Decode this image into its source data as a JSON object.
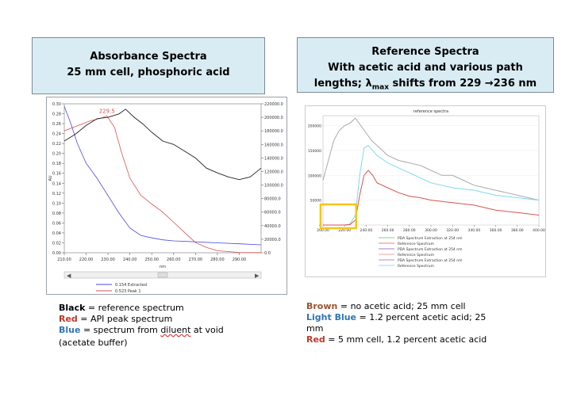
{
  "left_title": {
    "line1": "Absorbance Spectra",
    "line2": "25 mm cell, phosphoric acid"
  },
  "right_title": {
    "line1": "Reference Spectra",
    "line2": "With acetic acid and various path",
    "line3_pre": "lengths; λ",
    "line3_sub": "max",
    "line3_post": " shifts from 229 →236 nm"
  },
  "colors": {
    "black": "#222222",
    "red": "#d9534f",
    "blue": "#4a4adf",
    "brown": "#a9a9a9",
    "light_blue": "#7fd8ee",
    "highlight": "#f5c518"
  },
  "chart_data": [
    {
      "type": "line",
      "title": "",
      "xlabel": "nm",
      "ylabel": "AU",
      "xlim": [
        210,
        300
      ],
      "ylim": [
        0.0,
        0.3
      ],
      "y2lim": [
        0,
        220000
      ],
      "x_ticks": [
        "210.00",
        "220.00",
        "230.00",
        "240.00",
        "250.00",
        "260.00",
        "270.00",
        "280.00",
        "290.00"
      ],
      "y_ticks": [
        "0.00",
        "0.02",
        "0.04",
        "0.06",
        "0.08",
        "0.10",
        "0.12",
        "0.14",
        "0.16",
        "0.18",
        "0.20",
        "0.22",
        "0.24",
        "0.26",
        "0.28",
        "0.30"
      ],
      "y2_ticks": [
        "0.0",
        "20000.0",
        "40000.0",
        "60000.0",
        "80000.0",
        "100000.0",
        "120000.0",
        "140000.0",
        "160000.0",
        "180000.0",
        "200000.0",
        "220000.0"
      ],
      "peak_label": "229.5",
      "legend": [
        "0.154 Extracted",
        "0.523 Peak 1"
      ],
      "series": [
        {
          "name": "0.154 Extracted",
          "color": "blue",
          "axis": "y",
          "x": [
            210,
            213,
            216,
            220,
            225,
            230,
            235,
            240,
            245,
            250,
            255,
            260,
            270,
            280,
            290,
            300
          ],
          "y": [
            0.295,
            0.26,
            0.22,
            0.18,
            0.15,
            0.115,
            0.08,
            0.05,
            0.035,
            0.03,
            0.026,
            0.024,
            0.022,
            0.02,
            0.018,
            0.016
          ]
        },
        {
          "name": "0.523 Peak 1",
          "color": "red",
          "axis": "y2",
          "x": [
            210,
            214,
            218,
            222,
            226,
            229.5,
            233,
            236,
            240,
            245,
            250,
            255,
            260,
            265,
            270,
            275,
            280,
            290,
            300
          ],
          "y": [
            180000,
            185000,
            190000,
            195000,
            198000,
            202000,
            185000,
            150000,
            110000,
            85000,
            72000,
            60000,
            45000,
            30000,
            15000,
            8000,
            3000,
            500,
            200
          ]
        },
        {
          "name": "reference",
          "color": "black",
          "axis": "y2",
          "x": [
            210,
            215,
            220,
            225,
            230,
            235,
            238,
            242,
            246,
            250,
            255,
            260,
            265,
            270,
            275,
            280,
            285,
            290,
            295,
            300
          ],
          "y": [
            165000,
            175000,
            188000,
            198000,
            200000,
            205000,
            212000,
            200000,
            190000,
            178000,
            165000,
            160000,
            150000,
            140000,
            125000,
            118000,
            112000,
            108000,
            112000,
            125000
          ]
        }
      ]
    },
    {
      "type": "line",
      "title": "reference spectra",
      "xlim": [
        200,
        400
      ],
      "ylim": [
        0,
        220000
      ],
      "x_ticks": [
        "200.00",
        "220.00",
        "240.00",
        "260.00",
        "280.00",
        "300.00",
        "320.00",
        "340.00",
        "360.00",
        "380.00",
        "400.00"
      ],
      "y_ticks": [
        "0",
        "50000",
        "100000",
        "150000",
        "200000"
      ],
      "legend": [
        "PDA Spectrum Extraction at 254 nm",
        "Reference Spectrum",
        "PDA Spectrum Extraction at 254 nm",
        "Reference Spectrum",
        "PDA Spectrum Extraction at 254 nm",
        "Reference Spectrum"
      ],
      "legend_colors": [
        "#88cc88",
        "#f08080",
        "#9a7fd1",
        "#f0a0a0",
        "#b98ad6",
        "#8ee0f2"
      ],
      "series": [
        {
          "name": "Brown",
          "color": "brown",
          "x": [
            200,
            205,
            210,
            215,
            220,
            225,
            230,
            235,
            240,
            245,
            250,
            255,
            260,
            265,
            270,
            280,
            290,
            300,
            310,
            320,
            330,
            340,
            350,
            360,
            370,
            380,
            390,
            400
          ],
          "y": [
            90000,
            130000,
            170000,
            190000,
            200000,
            205000,
            215000,
            200000,
            185000,
            170000,
            160000,
            150000,
            140000,
            135000,
            130000,
            125000,
            120000,
            110000,
            100000,
            100000,
            90000,
            80000,
            75000,
            70000,
            65000,
            60000,
            55000,
            50000
          ]
        },
        {
          "name": "Light Blue",
          "color": "light_blue",
          "x": [
            200,
            210,
            215,
            220,
            225,
            230,
            234,
            238,
            242,
            246,
            250,
            260,
            270,
            280,
            290,
            300,
            320,
            340,
            360,
            380,
            400
          ],
          "y": [
            0,
            0,
            0,
            0,
            2000,
            20000,
            100000,
            155000,
            160000,
            150000,
            140000,
            125000,
            115000,
            105000,
            95000,
            85000,
            75000,
            70000,
            60000,
            55000,
            50000
          ]
        },
        {
          "name": "Red",
          "color": "red",
          "x": [
            200,
            210,
            215,
            220,
            225,
            230,
            234,
            238,
            242,
            246,
            250,
            260,
            270,
            280,
            290,
            300,
            320,
            340,
            360,
            380,
            400
          ],
          "y": [
            0,
            0,
            0,
            0,
            1000,
            10000,
            60000,
            100000,
            110000,
            100000,
            85000,
            75000,
            65000,
            58000,
            55000,
            50000,
            45000,
            40000,
            30000,
            25000,
            20000
          ]
        }
      ]
    }
  ],
  "left_legend": {
    "black_label": "Black",
    "black_text": " = reference spectrum",
    "red_label": "Red",
    "red_text": " = API peak spectrum",
    "blue_label": "Blue",
    "blue_text": " = spectrum from ",
    "blue_word": "diluent",
    "blue_text2": " at void",
    "blue_line2": "(acetate buffer)"
  },
  "right_legend": {
    "brown_label": "Brown",
    "brown_text": " = no acetic acid; 25 mm cell",
    "lightblue_label": "Light Blue",
    "lightblue_text": " = 1.2 percent acetic acid; 25",
    "lightblue_line2": "mm",
    "red_label": "Red",
    "red_text": " = 5 mm cell, 1.2 percent acetic acid"
  }
}
